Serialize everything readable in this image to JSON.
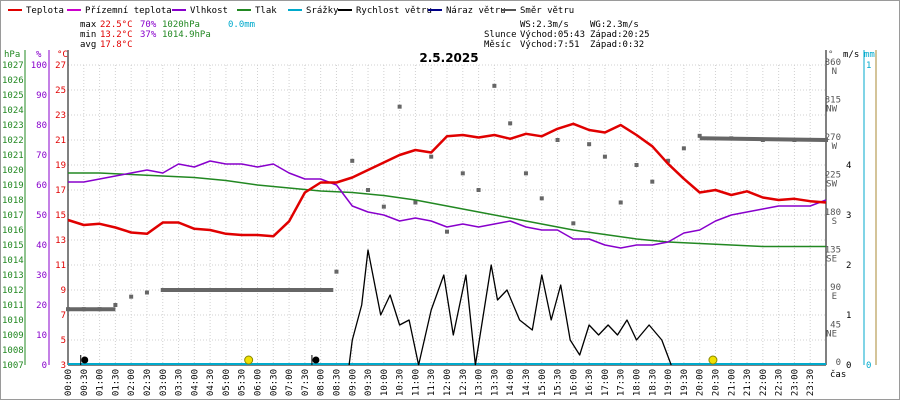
{
  "chart_data": {
    "type": "line",
    "title": "2.5.2025",
    "legend": [
      {
        "name": "Teplota",
        "color": "#e00000"
      },
      {
        "name": "Přízemní teplota",
        "color": "#cc00cc"
      },
      {
        "name": "Vlhkost",
        "color": "#8800cc"
      },
      {
        "name": "Tlak",
        "color": "#228822"
      },
      {
        "name": "Srážky",
        "color": "#00aacc"
      },
      {
        "name": "Rychlost větru",
        "color": "#000000"
      },
      {
        "name": "Náraz větru",
        "color": "#000088"
      },
      {
        "name": "Směr větru",
        "color": "#555555"
      }
    ],
    "stats": {
      "max": {
        "label": "max",
        "temp": "22.5°C",
        "hum": "70%",
        "press": "1020hPa",
        "rain": "0.0mm"
      },
      "min": {
        "label": "min",
        "temp": "13.2°C",
        "hum": "37%",
        "press": "1014.9hPa"
      },
      "avg": {
        "label": "avg",
        "temp": "17.8°C"
      }
    },
    "info": {
      "ws": "WS:2.3m/s",
      "wg": "WG:2.3m/s",
      "sun_label": "Slunce",
      "sunrise": "Východ:05:43",
      "sunset": "Západ:20:25",
      "moon_label": "Měsíc",
      "moonrise": "Východ:7:51",
      "moonset": "Západ:0:32"
    },
    "axes": {
      "left": [
        {
          "name": "hPa",
          "color": "#228822",
          "ticks": [
            "1027",
            "1026",
            "1025",
            "1024",
            "1023",
            "1022",
            "1021",
            "1020",
            "1019",
            "1018",
            "1017",
            "1016",
            "1015",
            "1014",
            "1013",
            "1012",
            "1011",
            "1010",
            "1009",
            "1008",
            "1007"
          ]
        },
        {
          "name": "%",
          "color": "#8800cc",
          "ticks": [
            "100",
            "90",
            "80",
            "70",
            "60",
            "50",
            "40",
            "30",
            "20",
            "10",
            "0"
          ]
        },
        {
          "name": "°C",
          "color": "#e00000",
          "ticks": [
            "27",
            "25",
            "23",
            "21",
            "19",
            "17",
            "15",
            "13",
            "11",
            "9",
            "7",
            "5",
            "3"
          ]
        }
      ],
      "right": [
        {
          "name": "°",
          "color": "#555555",
          "ticks": [
            "360 N",
            "315 NW",
            "270 W",
            "225 SW",
            "180 S",
            "135 SE",
            "90 E",
            "45 NE",
            "0"
          ]
        },
        {
          "name": "m/s",
          "color": "#000000",
          "ticks": [
            "4",
            "3",
            "2",
            "1",
            "0"
          ]
        },
        {
          "name": "mm",
          "color": "#00aacc",
          "ticks": [
            "1",
            "0"
          ]
        }
      ],
      "x_ticks": [
        "00:00",
        "00:30",
        "01:00",
        "01:30",
        "02:00",
        "02:30",
        "03:00",
        "03:30",
        "04:00",
        "04:30",
        "05:00",
        "05:30",
        "06:00",
        "06:30",
        "07:00",
        "07:30",
        "08:00",
        "08:30",
        "09:00",
        "09:30",
        "10:00",
        "10:30",
        "11:00",
        "11:30",
        "12:00",
        "12:30",
        "13:00",
        "13:30",
        "14:00",
        "14:30",
        "15:00",
        "15:30",
        "16:00",
        "16:30",
        "17:00",
        "17:30",
        "18:00",
        "18:30",
        "19:00",
        "19:30",
        "20:00",
        "20:30",
        "21:00",
        "21:30",
        "22:00",
        "22:30",
        "23:00",
        "23:30"
      ],
      "x_label": "čas"
    },
    "series": {
      "temperature": {
        "x": [
          0,
          0.5,
          1,
          1.5,
          2,
          2.5,
          3,
          3.5,
          4,
          4.5,
          5,
          5.5,
          6,
          6.5,
          7,
          7.5,
          8,
          8.5,
          9,
          9.5,
          10,
          10.5,
          11,
          11.5,
          12,
          12.5,
          13,
          13.5,
          14,
          14.5,
          15,
          15.5,
          16,
          16.5,
          17,
          17.5,
          18,
          18.5,
          19,
          19.5,
          20,
          20.5,
          21,
          21.5,
          22,
          22.5,
          23,
          23.5,
          24
        ],
        "y": [
          14.6,
          14.2,
          14.3,
          14.0,
          13.6,
          13.5,
          14.4,
          14.4,
          13.9,
          13.8,
          13.5,
          13.4,
          13.4,
          13.3,
          14.5,
          16.8,
          17.6,
          17.6,
          18.0,
          18.6,
          19.2,
          19.8,
          20.2,
          20.0,
          21.3,
          21.4,
          21.2,
          21.4,
          21.1,
          21.5,
          21.3,
          21.9,
          22.3,
          21.8,
          21.6,
          22.2,
          21.4,
          20.5,
          19.1,
          17.9,
          16.8,
          17.0,
          16.6,
          16.9,
          16.4,
          16.2,
          16.3,
          16.1,
          16.0
        ]
      },
      "humidity": {
        "x": [
          0,
          0.5,
          1,
          1.5,
          2,
          2.5,
          3,
          3.5,
          4,
          4.5,
          5,
          5.5,
          6,
          6.5,
          7,
          7.5,
          8,
          8.5,
          9,
          9.5,
          10,
          10.5,
          11,
          11.5,
          12,
          12.5,
          13,
          13.5,
          14,
          14.5,
          15,
          15.5,
          16,
          16.5,
          17,
          17.5,
          18,
          18.5,
          19,
          19.5,
          20,
          20.5,
          21,
          21.5,
          22,
          22.5,
          23,
          23.5,
          24
        ],
        "y": [
          61,
          61,
          62,
          63,
          64,
          65,
          64,
          67,
          66,
          68,
          67,
          67,
          66,
          67,
          64,
          62,
          62,
          60,
          53,
          51,
          50,
          48,
          49,
          48,
          46,
          47,
          46,
          47,
          48,
          46,
          45,
          45,
          42,
          42,
          40,
          39,
          40,
          40,
          41,
          44,
          45,
          48,
          50,
          51,
          52,
          53,
          53,
          53,
          55
        ]
      },
      "pressure": {
        "x": [
          0,
          1,
          2,
          3,
          4,
          5,
          6,
          7,
          8,
          9,
          10,
          11,
          12,
          13,
          14,
          15,
          16,
          17,
          18,
          19,
          20,
          21,
          22,
          23,
          24
        ],
        "y": [
          1019.8,
          1019.8,
          1019.7,
          1019.6,
          1019.5,
          1019.3,
          1019.0,
          1018.8,
          1018.6,
          1018.5,
          1018.3,
          1018.0,
          1017.6,
          1017.2,
          1016.8,
          1016.4,
          1016.0,
          1015.7,
          1015.4,
          1015.2,
          1015.1,
          1015.0,
          1014.9,
          1014.9,
          1014.9
        ]
      },
      "rain_mm": [
        0.0
      ],
      "wind_speed": {
        "x": [
          8.9,
          9.0,
          9.3,
          9.5,
          9.9,
          10.2,
          10.5,
          10.8,
          11.1,
          11.5,
          11.9,
          12.2,
          12.6,
          12.9,
          13.4,
          13.6,
          13.9,
          14.3,
          14.7,
          15.0,
          15.3,
          15.6,
          15.9,
          16.2,
          16.5,
          16.8,
          17.1,
          17.4,
          17.7,
          18.0,
          18.4,
          18.8,
          19.1
        ],
        "y": [
          0,
          0.5,
          1.2,
          2.3,
          1.0,
          1.4,
          0.8,
          0.9,
          0.0,
          1.1,
          1.8,
          0.6,
          1.8,
          0.0,
          2.0,
          1.3,
          1.5,
          0.9,
          0.7,
          1.8,
          0.9,
          1.6,
          0.5,
          0.2,
          0.8,
          0.6,
          0.8,
          0.6,
          0.9,
          0.5,
          0.8,
          0.5,
          0.0
        ]
      },
      "wind_direction_deg": {
        "x": [
          0,
          0.5,
          1,
          1.5,
          2,
          2.5,
          3,
          4,
          5,
          6,
          7,
          8,
          8.5,
          9.0,
          9.5,
          10,
          10.5,
          11,
          11.5,
          12,
          12.5,
          13,
          13.5,
          14,
          14.5,
          15,
          15.5,
          16,
          16.5,
          17,
          17.5,
          18,
          18.5,
          19,
          19.5,
          20,
          21,
          22,
          23,
          24
        ],
        "y": [
          67,
          67,
          67,
          72,
          82,
          87,
          90,
          90,
          90,
          90,
          90,
          90,
          112,
          245,
          210,
          190,
          310,
          195,
          250,
          160,
          230,
          210,
          335,
          290,
          230,
          200,
          270,
          170,
          265,
          250,
          195,
          240,
          220,
          245,
          260,
          275,
          272,
          270,
          270,
          270
        ]
      },
      "markers": [
        {
          "type": "moonset",
          "time": 0.53,
          "symbol": "black-dot"
        },
        {
          "type": "sunrise",
          "time": 5.72,
          "symbol": "yellow-diamond"
        },
        {
          "type": "moonrise",
          "time": 7.85,
          "symbol": "black-dot"
        },
        {
          "type": "sunset",
          "time": 20.42,
          "symbol": "yellow-diamond"
        }
      ]
    }
  }
}
